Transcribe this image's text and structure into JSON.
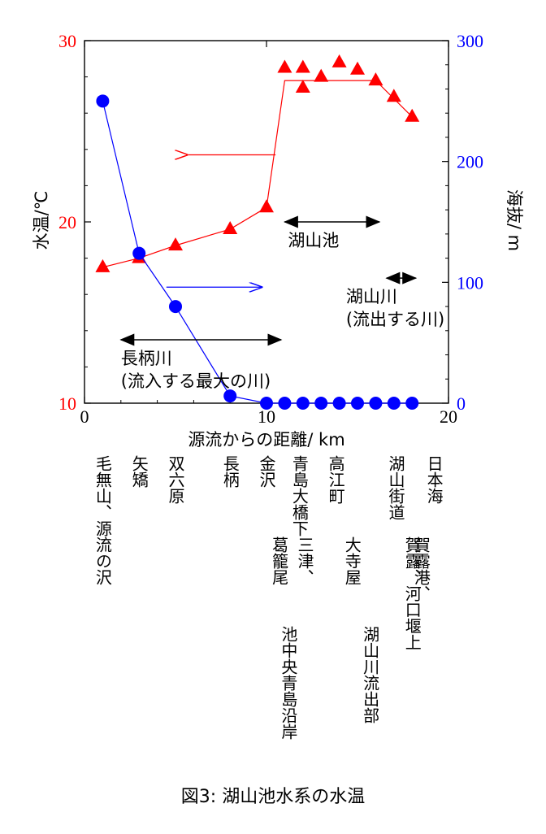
{
  "chart_data": {
    "type": "line",
    "x": {
      "label": "源流からの距離/ km",
      "lim": [
        0,
        20
      ],
      "ticks": [
        0,
        10,
        20
      ]
    },
    "y_left": {
      "label": "水温/℃",
      "lim": [
        10,
        30
      ],
      "ticks": [
        10,
        20,
        30
      ],
      "color": "#ff0000"
    },
    "y_right": {
      "label": "海抜/ m",
      "lim": [
        0,
        300
      ],
      "ticks": [
        0,
        100,
        200,
        300
      ],
      "color": "#0000ff"
    },
    "series": [
      {
        "axis": "left",
        "marker": "triangle",
        "color": "#ff0000",
        "points": [
          [
            1,
            17.5
          ],
          [
            3,
            18.0
          ],
          [
            5,
            18.7
          ],
          [
            8,
            19.6
          ],
          [
            10,
            20.8
          ],
          [
            11,
            28.5
          ],
          [
            12,
            28.5
          ],
          [
            12,
            27.4
          ],
          [
            13,
            28.0
          ],
          [
            14,
            28.8
          ],
          [
            15,
            28.4
          ],
          [
            16,
            27.8
          ],
          [
            17,
            26.9
          ],
          [
            18,
            25.8
          ]
        ],
        "line": [
          [
            1,
            17.5
          ],
          [
            3,
            18.0
          ],
          [
            5,
            18.7
          ],
          [
            8,
            19.6
          ],
          [
            10,
            20.8
          ],
          [
            11,
            27.8
          ],
          [
            16,
            27.8
          ],
          [
            18,
            25.8
          ]
        ]
      },
      {
        "axis": "right",
        "marker": "circle",
        "color": "#0000ff",
        "points": [
          [
            1,
            250
          ],
          [
            3,
            124
          ],
          [
            5,
            80
          ],
          [
            8,
            6
          ],
          [
            10,
            0
          ],
          [
            11,
            0
          ],
          [
            12,
            0
          ],
          [
            13,
            0
          ],
          [
            14,
            0
          ],
          [
            15,
            0
          ],
          [
            16,
            0
          ],
          [
            17,
            0
          ],
          [
            18,
            0
          ]
        ]
      }
    ],
    "axis_arrows": [
      {
        "color": "#ff0000",
        "direction": "left",
        "x_from": 10.5,
        "x_to": 5.7,
        "y_left": 23.7
      },
      {
        "color": "#0000ff",
        "direction": "right",
        "x_from": 4.5,
        "x_to": 9.8,
        "y_left": 16.4
      }
    ],
    "range_annotations": [
      {
        "label": [
          "長柄川",
          "(流入する最大の川)"
        ],
        "from": 2,
        "to": 10.8,
        "y_left": 13.5
      },
      {
        "label": [
          "湖山池"
        ],
        "from": 11,
        "to": 16.2,
        "y_left": 20.0
      },
      {
        "label": [
          "湖山川",
          "(流出する川)"
        ],
        "from": 16.6,
        "to": 18.2,
        "y_left": 16.9
      }
    ],
    "location_labels": [
      {
        "x": 1,
        "text": "毛無山、源流の沢",
        "row": 0
      },
      {
        "x": 3,
        "text": "矢矯",
        "row": 0
      },
      {
        "x": 5,
        "text": "双六原",
        "row": 0
      },
      {
        "x": 8,
        "text": "長柄",
        "row": 0
      },
      {
        "x": 10,
        "text": "金沢",
        "row": 0
      },
      {
        "x": 10.7,
        "text": "葛籠尾",
        "row": 1
      },
      {
        "x": 11.8,
        "text": "青島大橋下",
        "row": 0
      },
      {
        "x": 11.2,
        "text": "池中央青島沿岸",
        "row": 2
      },
      {
        "x": 12.1,
        "text": "三津、",
        "row": 1
      },
      {
        "x": 13.8,
        "text": "高江町",
        "row": 0
      },
      {
        "x": 14.7,
        "text": "大寺屋",
        "row": 1
      },
      {
        "x": 15.7,
        "text": "湖山川流出部",
        "row": 2
      },
      {
        "x": 17.1,
        "text": "湖山街道",
        "row": 0
      },
      {
        "x": 18.0,
        "text": "賀露、河口堰上",
        "row": 1
      },
      {
        "x": 18.5,
        "text": "賀露港、",
        "row": 1
      },
      {
        "x": 19.2,
        "text": "日本海",
        "row": 0
      }
    ]
  },
  "caption": "図3: 湖山池水系の水温"
}
